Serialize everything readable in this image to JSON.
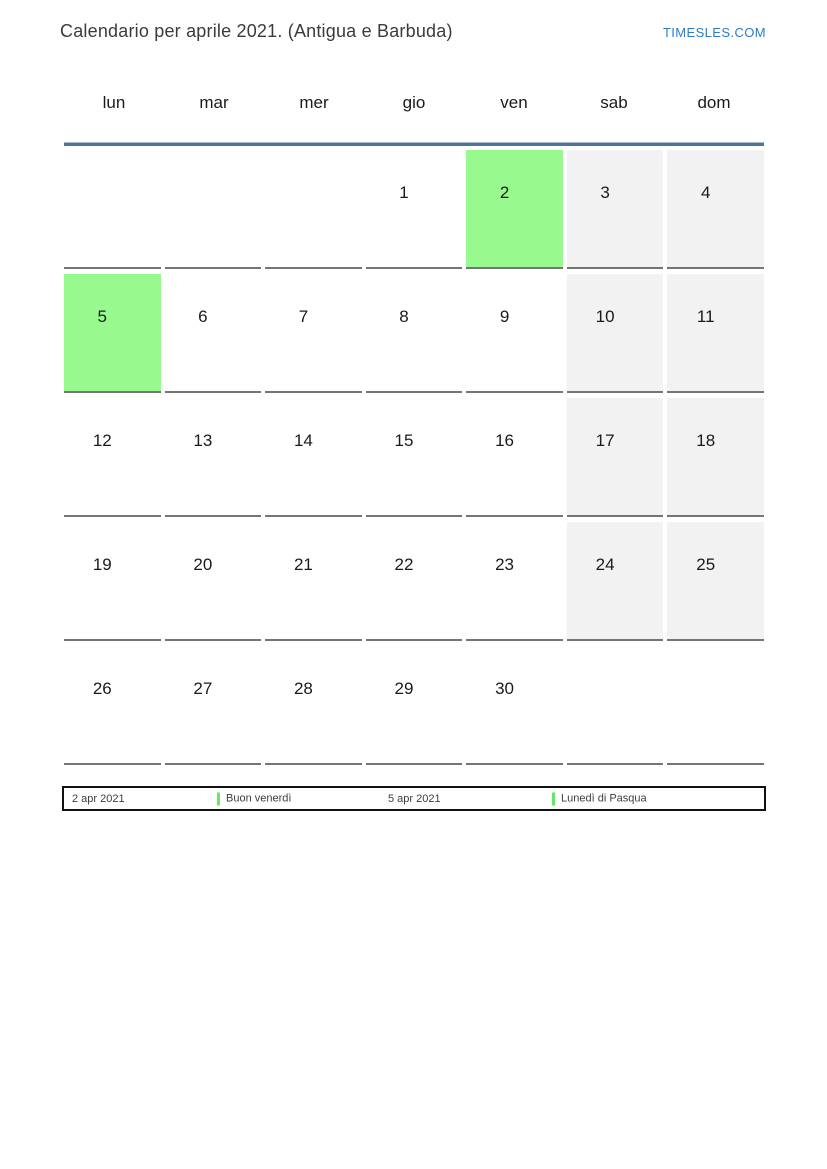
{
  "header": {
    "title": "Calendario per aprile 2021. (Antigua e Barbuda)",
    "site_link": "TIMESLES.COM"
  },
  "calendar": {
    "weekday_headers": [
      "lun",
      "mar",
      "mer",
      "gio",
      "ven",
      "sab",
      "dom"
    ],
    "weeks": [
      [
        {
          "day": "",
          "type": "empty"
        },
        {
          "day": "",
          "type": "empty"
        },
        {
          "day": "",
          "type": "empty"
        },
        {
          "day": "1",
          "type": "normal"
        },
        {
          "day": "2",
          "type": "holiday"
        },
        {
          "day": "3",
          "type": "weekend"
        },
        {
          "day": "4",
          "type": "weekend"
        }
      ],
      [
        {
          "day": "5",
          "type": "holiday"
        },
        {
          "day": "6",
          "type": "normal"
        },
        {
          "day": "7",
          "type": "normal"
        },
        {
          "day": "8",
          "type": "normal"
        },
        {
          "day": "9",
          "type": "normal"
        },
        {
          "day": "10",
          "type": "weekend"
        },
        {
          "day": "11",
          "type": "weekend"
        }
      ],
      [
        {
          "day": "12",
          "type": "normal"
        },
        {
          "day": "13",
          "type": "normal"
        },
        {
          "day": "14",
          "type": "normal"
        },
        {
          "day": "15",
          "type": "normal"
        },
        {
          "day": "16",
          "type": "normal"
        },
        {
          "day": "17",
          "type": "weekend"
        },
        {
          "day": "18",
          "type": "weekend"
        }
      ],
      [
        {
          "day": "19",
          "type": "normal"
        },
        {
          "day": "20",
          "type": "normal"
        },
        {
          "day": "21",
          "type": "normal"
        },
        {
          "day": "22",
          "type": "normal"
        },
        {
          "day": "23",
          "type": "normal"
        },
        {
          "day": "24",
          "type": "weekend"
        },
        {
          "day": "25",
          "type": "weekend"
        }
      ],
      [
        {
          "day": "26",
          "type": "normal"
        },
        {
          "day": "27",
          "type": "normal"
        },
        {
          "day": "28",
          "type": "normal"
        },
        {
          "day": "29",
          "type": "normal"
        },
        {
          "day": "30",
          "type": "normal"
        },
        {
          "day": "",
          "type": "empty"
        },
        {
          "day": "",
          "type": "empty"
        }
      ]
    ]
  },
  "legend": {
    "entries": [
      {
        "label": "2 apr 2021",
        "marker": false
      },
      {
        "label": "Buon venerdì",
        "marker": true
      },
      {
        "label": "5 apr 2021",
        "marker": false
      },
      {
        "label": "Lunedì di Pasqua",
        "marker": true
      }
    ]
  },
  "colors": {
    "holiday_green": "#98fa8e",
    "weekend_gray": "#f2f2f2",
    "header_line_blue": "#4d7499",
    "cell_border_gray": "#757575",
    "legend_marker_green": "#66e566",
    "site_link_blue": "#2e7cbf",
    "title_gray": "#3b3b3b"
  }
}
